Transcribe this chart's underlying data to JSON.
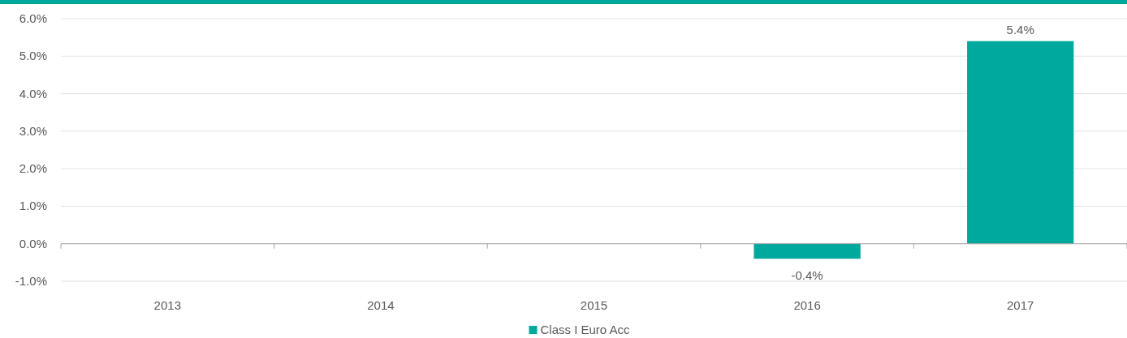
{
  "chart_data": {
    "type": "bar",
    "categories": [
      "2013",
      "2014",
      "2015",
      "2016",
      "2017"
    ],
    "series": [
      {
        "name": "Class I Euro Acc",
        "color": "#00a99d",
        "values": [
          null,
          null,
          null,
          -0.4,
          5.4
        ],
        "value_labels": [
          null,
          null,
          null,
          "-0.4%",
          "5.4%"
        ]
      }
    ],
    "ylim": [
      -1,
      6
    ],
    "yticks": [
      {
        "value": -1,
        "label": "-1.0%"
      },
      {
        "value": 0,
        "label": "0.0%"
      },
      {
        "value": 1,
        "label": "1.0%"
      },
      {
        "value": 2,
        "label": "2.0%"
      },
      {
        "value": 3,
        "label": "3.0%"
      },
      {
        "value": 4,
        "label": "4.0%"
      },
      {
        "value": 5,
        "label": "5.0%"
      },
      {
        "value": 6,
        "label": "6.0%"
      }
    ],
    "grid": "y",
    "legend": "bottom"
  }
}
